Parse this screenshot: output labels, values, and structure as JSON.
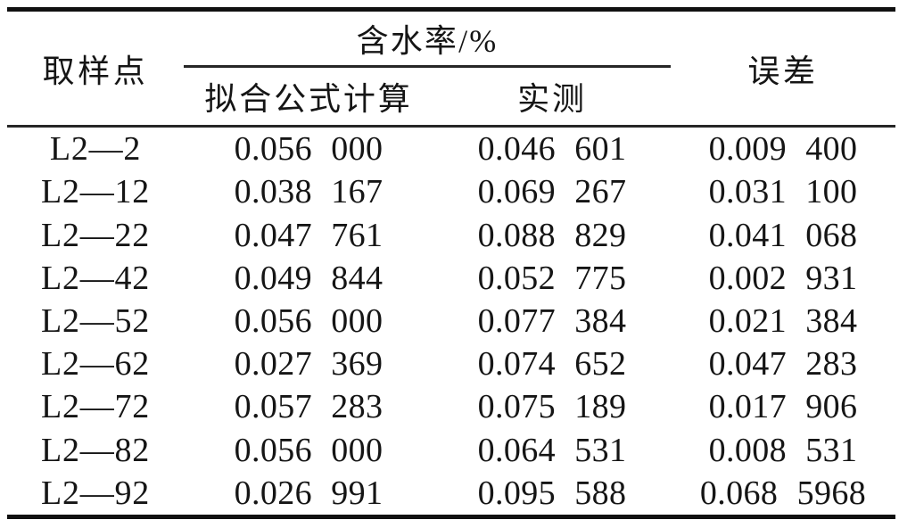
{
  "page": {
    "background": "#ffffff",
    "text_color": "#151515",
    "rule_color": "#101010"
  },
  "table": {
    "header": {
      "col_sample": "取样点",
      "group_water": "含水率/%",
      "sub_fitted": "拟合公式计算",
      "sub_measured": "实测",
      "col_error": "误差"
    },
    "rows": [
      {
        "sample": "L2—2",
        "fitted": "0.056 000",
        "measured": "0.046 601",
        "error": "0.009 400"
      },
      {
        "sample": "L2—12",
        "fitted": "0.038 167",
        "measured": "0.069 267",
        "error": "0.031 100"
      },
      {
        "sample": "L2—22",
        "fitted": "0.047 761",
        "measured": "0.088 829",
        "error": "0.041 068"
      },
      {
        "sample": "L2—42",
        "fitted": "0.049 844",
        "measured": "0.052 775",
        "error": "0.002 931"
      },
      {
        "sample": "L2—52",
        "fitted": "0.056 000",
        "measured": "0.077 384",
        "error": "0.021 384"
      },
      {
        "sample": "L2—62",
        "fitted": "0.027 369",
        "measured": "0.074 652",
        "error": "0.047 283"
      },
      {
        "sample": "L2—72",
        "fitted": "0.057 283",
        "measured": "0.075 189",
        "error": "0.017 906"
      },
      {
        "sample": "L2—82",
        "fitted": "0.056 000",
        "measured": "0.064 531",
        "error": "0.008 531"
      },
      {
        "sample": "L2—92",
        "fitted": "0.026 991",
        "measured": "0.095 588",
        "error": "0.068 5968"
      }
    ]
  }
}
